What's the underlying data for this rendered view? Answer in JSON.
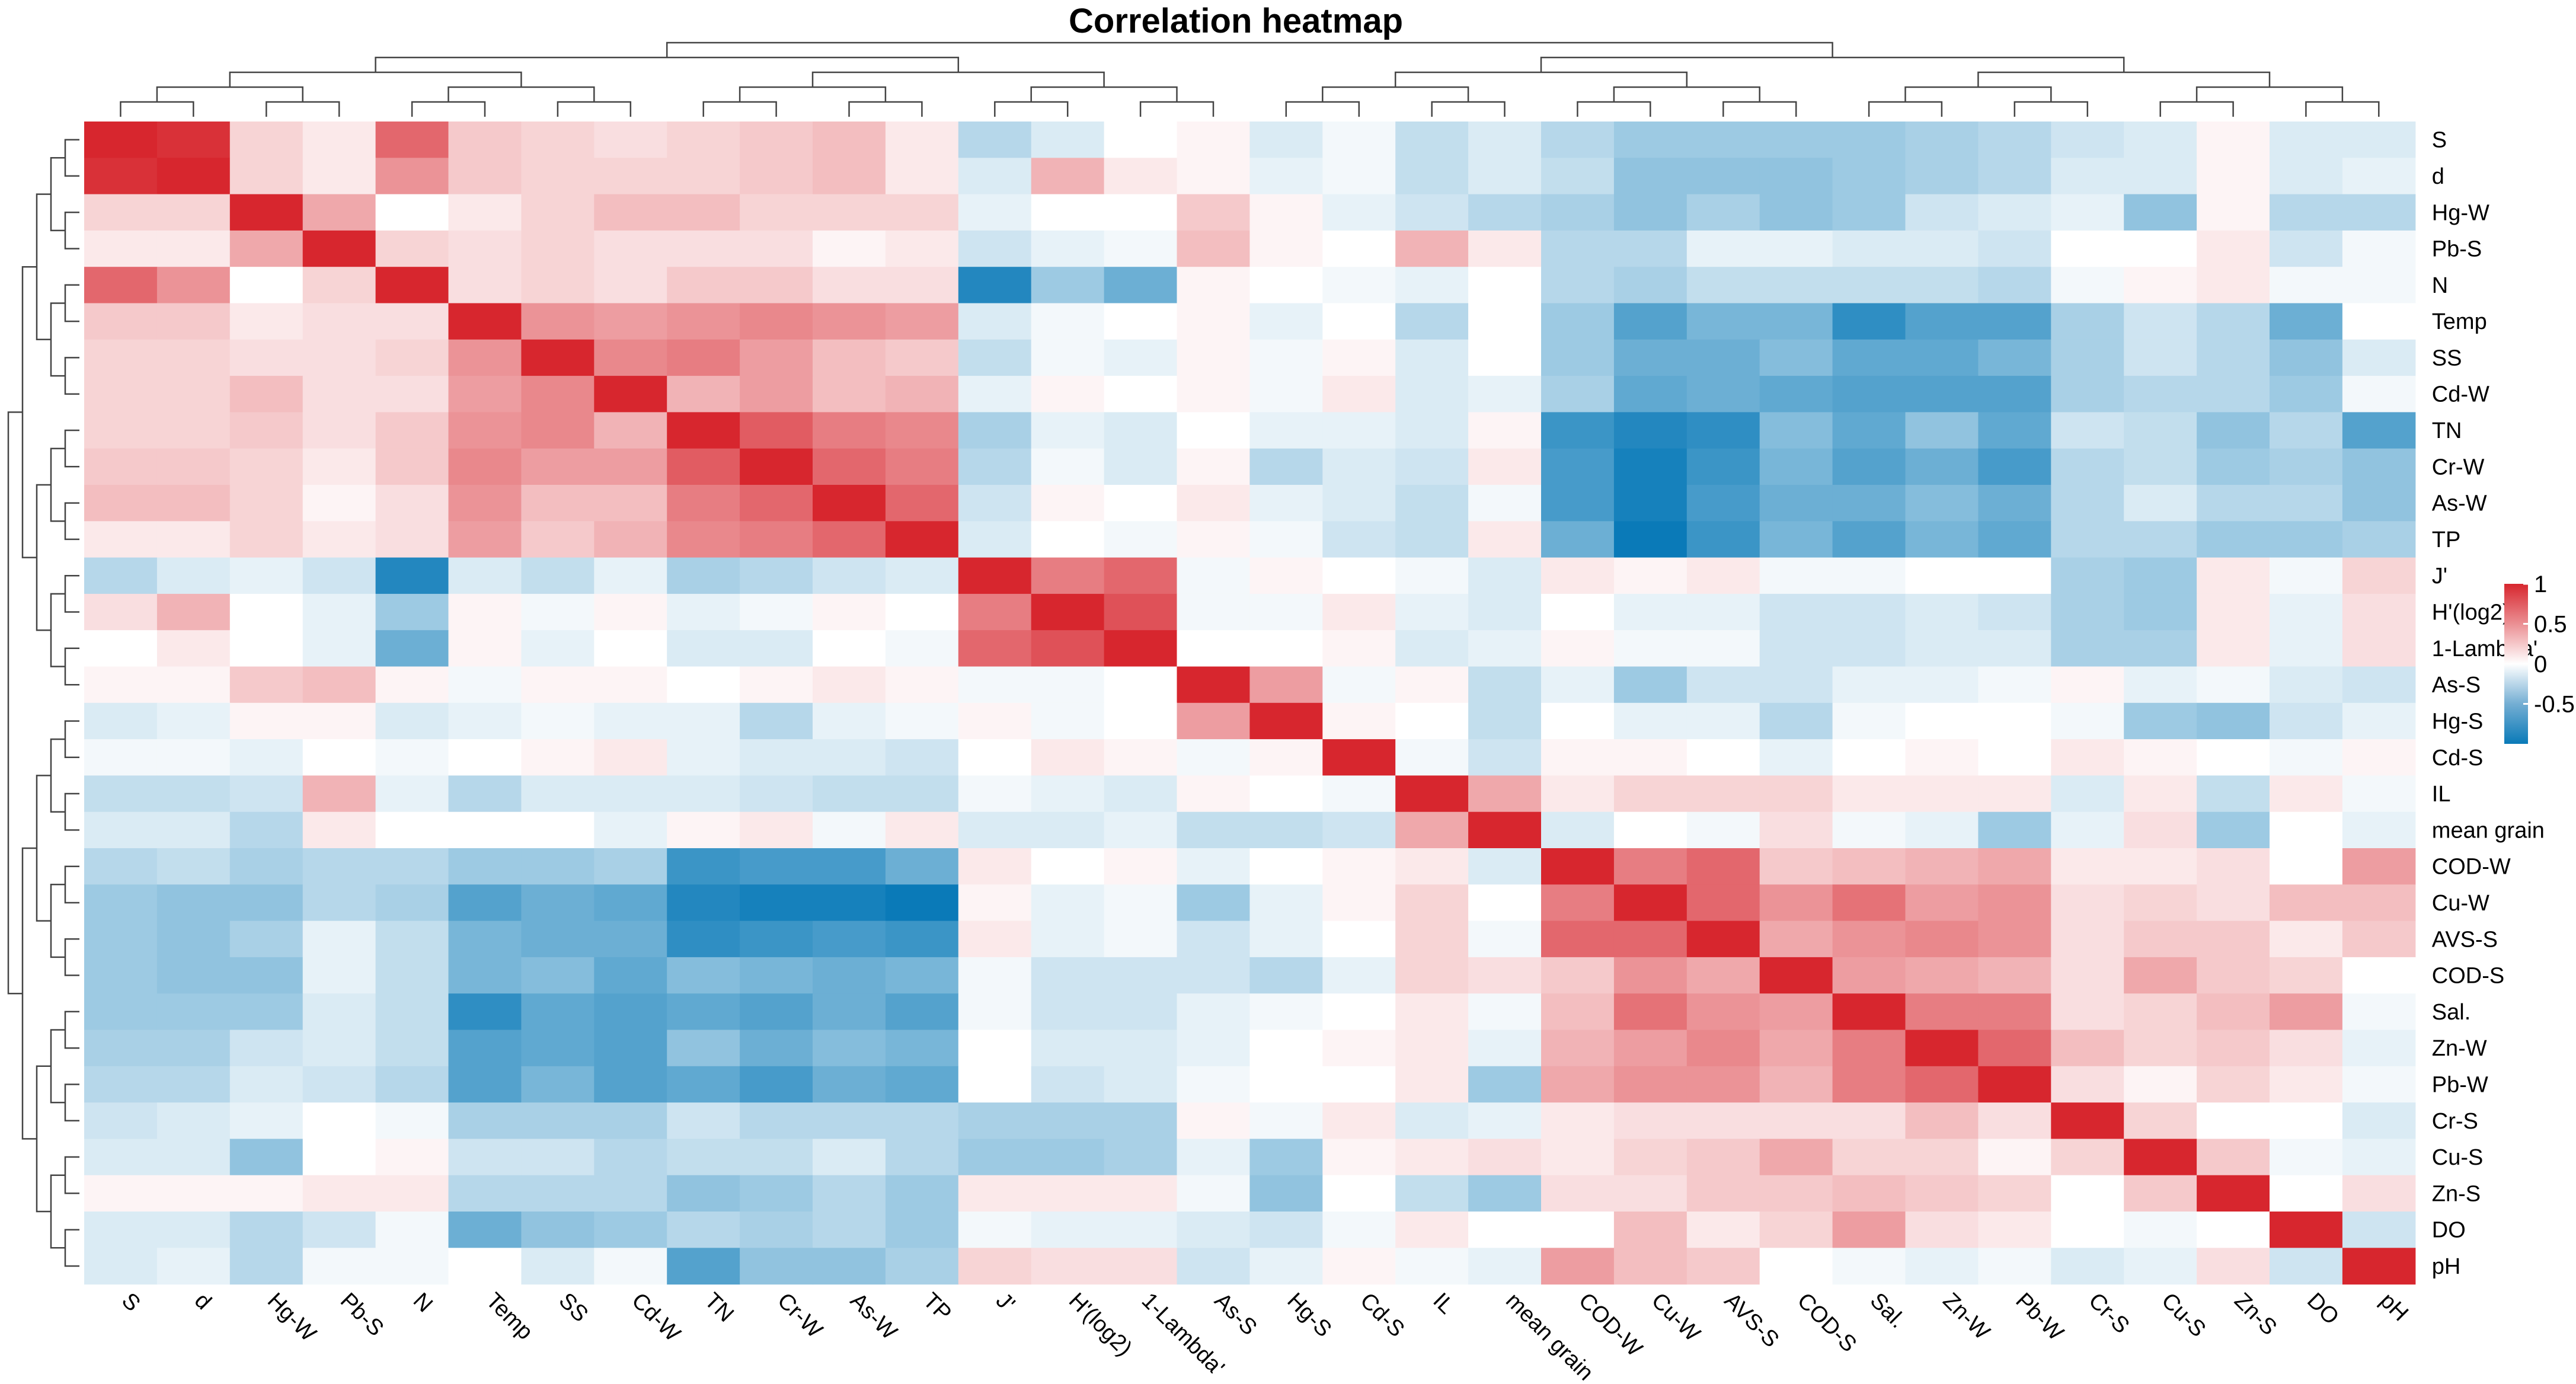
{
  "chart_data": {
    "type": "heatmap",
    "title": "Correlation heatmap",
    "variables": [
      "S",
      "d",
      "Hg-W",
      "Pb-S",
      "N",
      "Temp",
      "SS",
      "Cd-W",
      "TN",
      "Cr-W",
      "As-W",
      "TP",
      "J'",
      "H'(log2)",
      "1-Lambda'",
      "As-S",
      "Hg-S",
      "Cd-S",
      "IL",
      "mean grain",
      "COD-W",
      "Cu-W",
      "AVS-S",
      "COD-S",
      "Sal.",
      "Zn-W",
      "Pb-W",
      "Cr-S",
      "Cu-S",
      "Zn-S",
      "DO",
      "pH"
    ],
    "row_labels": [
      "S",
      "d",
      "Hg-W",
      "Pb-S",
      "N",
      "Temp",
      "SS",
      "Cd-W",
      "TN",
      "Cr-W",
      "As-W",
      "TP",
      "J'",
      "H'(log2)",
      "1-Lambda'",
      "As-S",
      "Hg-S",
      "Cd-S",
      "IL",
      "mean grain",
      "COD-W",
      "Cu-W",
      "AVS-S",
      "COD-S",
      "Sal.",
      "Zn-W",
      "Pb-W",
      "Cr-S",
      "Cu-S",
      "Zn-S",
      "DO",
      "pH"
    ],
    "col_labels": [
      "S",
      "d",
      "Hg-W",
      "Pb-S",
      "N",
      "Temp",
      "SS",
      "Cd-W",
      "TN",
      "Cr-W",
      "As-W",
      "TP",
      "J'",
      "H'(log2)",
      "1-Lambda'",
      "As-S",
      "Hg-S",
      "Cd-S",
      "IL",
      "mean grain",
      "COD-W",
      "Cu-W",
      "AVS-S",
      "COD-S",
      "Sal.",
      "Zn-W",
      "Pb-W",
      "Cr-S",
      "Cu-S",
      "Zn-S",
      "DO",
      "pH"
    ],
    "values": [
      [
        1.0,
        0.95,
        0.2,
        0.1,
        0.7,
        0.25,
        0.2,
        0.15,
        0.2,
        0.25,
        0.3,
        0.1,
        -0.3,
        -0.15,
        0.0,
        0.05,
        -0.15,
        -0.05,
        -0.25,
        -0.15,
        -0.3,
        -0.4,
        -0.4,
        -0.4,
        -0.4,
        -0.35,
        -0.3,
        -0.2,
        -0.15,
        0.05,
        -0.15,
        -0.15
      ],
      [
        0.95,
        1.0,
        0.2,
        0.1,
        0.5,
        0.25,
        0.2,
        0.2,
        0.2,
        0.25,
        0.3,
        0.1,
        -0.15,
        0.35,
        0.1,
        0.05,
        -0.1,
        -0.05,
        -0.25,
        -0.15,
        -0.25,
        -0.45,
        -0.45,
        -0.45,
        -0.4,
        -0.35,
        -0.3,
        -0.15,
        -0.15,
        0.05,
        -0.15,
        -0.1
      ],
      [
        0.2,
        0.2,
        1.0,
        0.4,
        0.0,
        0.1,
        0.2,
        0.3,
        0.3,
        0.2,
        0.2,
        0.2,
        -0.1,
        0.0,
        0.0,
        0.25,
        0.05,
        -0.1,
        -0.2,
        -0.3,
        -0.35,
        -0.45,
        -0.35,
        -0.45,
        -0.4,
        -0.2,
        -0.15,
        -0.1,
        -0.45,
        0.05,
        -0.3,
        -0.3
      ],
      [
        0.1,
        0.1,
        0.4,
        1.0,
        0.2,
        0.15,
        0.2,
        0.15,
        0.15,
        0.15,
        0.05,
        0.1,
        -0.2,
        -0.1,
        -0.05,
        0.3,
        0.05,
        0.0,
        0.35,
        0.1,
        -0.3,
        -0.3,
        -0.1,
        -0.1,
        -0.15,
        -0.15,
        -0.2,
        0.0,
        0.0,
        0.1,
        -0.2,
        -0.05
      ],
      [
        0.7,
        0.5,
        0.0,
        0.2,
        1.0,
        0.15,
        0.2,
        0.15,
        0.25,
        0.25,
        0.15,
        0.15,
        -0.9,
        -0.4,
        -0.6,
        0.05,
        0.0,
        -0.05,
        -0.1,
        0.0,
        -0.3,
        -0.35,
        -0.25,
        -0.25,
        -0.25,
        -0.25,
        -0.3,
        -0.05,
        0.05,
        0.1,
        -0.05,
        -0.05
      ],
      [
        0.25,
        0.25,
        0.1,
        0.15,
        0.15,
        1.0,
        0.5,
        0.45,
        0.5,
        0.55,
        0.5,
        0.45,
        -0.15,
        -0.05,
        0.0,
        0.05,
        -0.1,
        0.0,
        -0.3,
        0.0,
        -0.4,
        -0.7,
        -0.55,
        -0.55,
        -0.85,
        -0.7,
        -0.7,
        -0.35,
        -0.2,
        -0.3,
        -0.6,
        0.0
      ],
      [
        0.2,
        0.2,
        0.15,
        0.15,
        0.2,
        0.5,
        1.0,
        0.55,
        0.6,
        0.45,
        0.3,
        0.25,
        -0.25,
        -0.05,
        -0.1,
        0.05,
        -0.05,
        0.05,
        -0.15,
        0.0,
        -0.4,
        -0.6,
        -0.6,
        -0.5,
        -0.65,
        -0.65,
        -0.55,
        -0.35,
        -0.2,
        -0.3,
        -0.45,
        -0.15
      ],
      [
        0.2,
        0.2,
        0.3,
        0.15,
        0.15,
        0.45,
        0.55,
        1.0,
        0.35,
        0.45,
        0.3,
        0.35,
        -0.1,
        0.05,
        0.0,
        0.05,
        -0.05,
        0.1,
        -0.15,
        -0.1,
        -0.35,
        -0.65,
        -0.6,
        -0.65,
        -0.7,
        -0.7,
        -0.7,
        -0.35,
        -0.3,
        -0.3,
        -0.4,
        -0.05
      ],
      [
        0.2,
        0.2,
        0.25,
        0.15,
        0.25,
        0.5,
        0.55,
        0.35,
        1.0,
        0.75,
        0.6,
        0.55,
        -0.35,
        -0.1,
        -0.15,
        0.0,
        -0.1,
        -0.1,
        -0.15,
        0.05,
        -0.8,
        -0.9,
        -0.85,
        -0.5,
        -0.65,
        -0.45,
        -0.65,
        -0.2,
        -0.25,
        -0.45,
        -0.3,
        -0.7
      ],
      [
        0.25,
        0.25,
        0.2,
        0.1,
        0.25,
        0.55,
        0.45,
        0.45,
        0.75,
        1.0,
        0.7,
        0.6,
        -0.3,
        -0.05,
        -0.15,
        0.05,
        -0.3,
        -0.15,
        -0.2,
        0.1,
        -0.75,
        -0.95,
        -0.8,
        -0.55,
        -0.7,
        -0.6,
        -0.75,
        -0.3,
        -0.25,
        -0.4,
        -0.35,
        -0.45
      ],
      [
        0.3,
        0.3,
        0.2,
        0.05,
        0.15,
        0.5,
        0.3,
        0.3,
        0.6,
        0.7,
        1.0,
        0.7,
        -0.2,
        0.05,
        0.0,
        0.1,
        -0.1,
        -0.15,
        -0.25,
        -0.05,
        -0.75,
        -0.95,
        -0.75,
        -0.6,
        -0.6,
        -0.5,
        -0.6,
        -0.3,
        -0.15,
        -0.3,
        -0.3,
        -0.45
      ],
      [
        0.1,
        0.1,
        0.2,
        0.1,
        0.15,
        0.45,
        0.25,
        0.35,
        0.55,
        0.6,
        0.7,
        1.0,
        -0.15,
        0.0,
        -0.05,
        0.05,
        -0.05,
        -0.2,
        -0.25,
        0.1,
        -0.6,
        -1.0,
        -0.8,
        -0.55,
        -0.7,
        -0.55,
        -0.65,
        -0.3,
        -0.3,
        -0.4,
        -0.4,
        -0.35
      ],
      [
        -0.3,
        -0.15,
        -0.1,
        -0.2,
        -0.9,
        -0.15,
        -0.25,
        -0.1,
        -0.35,
        -0.3,
        -0.2,
        -0.15,
        1.0,
        0.6,
        0.7,
        -0.05,
        0.05,
        0.0,
        -0.05,
        -0.15,
        0.1,
        0.05,
        0.1,
        -0.05,
        -0.05,
        0.0,
        0.0,
        -0.35,
        -0.4,
        0.1,
        -0.05,
        0.2
      ],
      [
        0.15,
        0.35,
        0.0,
        -0.1,
        -0.4,
        0.05,
        -0.05,
        0.05,
        -0.1,
        -0.05,
        0.05,
        0.0,
        0.6,
        1.0,
        0.8,
        -0.05,
        -0.05,
        0.1,
        -0.1,
        -0.15,
        0.0,
        -0.1,
        -0.1,
        -0.2,
        -0.2,
        -0.15,
        -0.2,
        -0.35,
        -0.4,
        0.1,
        -0.1,
        0.15
      ],
      [
        0.0,
        0.1,
        0.0,
        -0.1,
        -0.6,
        0.05,
        -0.1,
        0.0,
        -0.15,
        -0.15,
        0.0,
        -0.05,
        0.7,
        0.8,
        1.0,
        0.0,
        0.0,
        0.05,
        -0.15,
        -0.1,
        0.05,
        -0.05,
        -0.05,
        -0.2,
        -0.2,
        -0.15,
        -0.15,
        -0.35,
        -0.35,
        0.1,
        -0.1,
        0.15
      ],
      [
        0.05,
        0.05,
        0.25,
        0.3,
        0.05,
        -0.05,
        0.05,
        0.05,
        0.0,
        0.05,
        0.1,
        0.05,
        -0.05,
        -0.05,
        0.0,
        1.0,
        0.45,
        -0.05,
        0.05,
        -0.25,
        -0.1,
        -0.4,
        -0.2,
        -0.2,
        -0.1,
        -0.1,
        -0.05,
        0.05,
        -0.1,
        -0.05,
        -0.15,
        -0.2
      ],
      [
        -0.15,
        -0.1,
        0.05,
        0.05,
        -0.15,
        -0.1,
        -0.05,
        -0.1,
        -0.1,
        -0.3,
        -0.1,
        -0.05,
        0.05,
        -0.05,
        0.0,
        0.45,
        1.0,
        0.05,
        0.0,
        -0.25,
        0.0,
        -0.1,
        -0.1,
        -0.3,
        -0.05,
        0.0,
        0.0,
        -0.05,
        -0.4,
        -0.45,
        -0.2,
        -0.1
      ],
      [
        -0.05,
        -0.05,
        -0.1,
        0.0,
        -0.05,
        0.0,
        0.05,
        0.1,
        -0.1,
        -0.15,
        -0.15,
        -0.2,
        0.0,
        0.1,
        0.05,
        -0.05,
        0.05,
        1.0,
        -0.05,
        -0.2,
        0.05,
        0.05,
        0.0,
        -0.1,
        0.0,
        0.05,
        0.0,
        0.1,
        0.05,
        0.0,
        -0.05,
        0.05
      ],
      [
        -0.25,
        -0.25,
        -0.2,
        0.35,
        -0.1,
        -0.3,
        -0.15,
        -0.15,
        -0.15,
        -0.2,
        -0.25,
        -0.25,
        -0.05,
        -0.1,
        -0.15,
        0.05,
        0.0,
        -0.05,
        1.0,
        0.4,
        0.1,
        0.2,
        0.2,
        0.2,
        0.1,
        0.1,
        0.1,
        -0.15,
        0.1,
        -0.25,
        0.1,
        -0.05
      ],
      [
        -0.15,
        -0.15,
        -0.3,
        0.1,
        0.0,
        0.0,
        0.0,
        -0.1,
        0.05,
        0.1,
        -0.05,
        0.1,
        -0.15,
        -0.15,
        -0.1,
        -0.25,
        -0.25,
        -0.2,
        0.4,
        1.0,
        -0.15,
        0.0,
        -0.05,
        0.15,
        -0.05,
        -0.1,
        -0.4,
        -0.1,
        0.15,
        -0.4,
        0.0,
        -0.1
      ],
      [
        -0.3,
        -0.25,
        -0.35,
        -0.3,
        -0.3,
        -0.4,
        -0.4,
        -0.35,
        -0.8,
        -0.75,
        -0.75,
        -0.6,
        0.1,
        0.0,
        0.05,
        -0.1,
        0.0,
        0.05,
        0.1,
        -0.15,
        1.0,
        0.6,
        0.7,
        0.25,
        0.3,
        0.35,
        0.4,
        0.1,
        0.1,
        0.15,
        0.0,
        0.45
      ],
      [
        -0.4,
        -0.45,
        -0.45,
        -0.3,
        -0.35,
        -0.7,
        -0.6,
        -0.65,
        -0.9,
        -0.95,
        -0.95,
        -1.0,
        0.05,
        -0.1,
        -0.05,
        -0.4,
        -0.1,
        0.05,
        0.2,
        0.0,
        0.6,
        1.0,
        0.7,
        0.5,
        0.65,
        0.45,
        0.5,
        0.15,
        0.2,
        0.15,
        0.3,
        0.3
      ],
      [
        -0.4,
        -0.45,
        -0.35,
        -0.1,
        -0.25,
        -0.55,
        -0.6,
        -0.6,
        -0.85,
        -0.8,
        -0.75,
        -0.8,
        0.1,
        -0.1,
        -0.05,
        -0.2,
        -0.1,
        0.0,
        0.2,
        -0.05,
        0.7,
        0.7,
        1.0,
        0.4,
        0.5,
        0.55,
        0.5,
        0.15,
        0.25,
        0.25,
        0.1,
        0.25
      ],
      [
        -0.4,
        -0.45,
        -0.45,
        -0.1,
        -0.25,
        -0.55,
        -0.5,
        -0.65,
        -0.5,
        -0.55,
        -0.6,
        -0.55,
        -0.05,
        -0.2,
        -0.2,
        -0.2,
        -0.3,
        -0.1,
        0.2,
        0.15,
        0.25,
        0.5,
        0.4,
        1.0,
        0.45,
        0.4,
        0.35,
        0.15,
        0.4,
        0.25,
        0.2,
        0.0
      ],
      [
        -0.4,
        -0.4,
        -0.4,
        -0.15,
        -0.25,
        -0.85,
        -0.65,
        -0.7,
        -0.65,
        -0.7,
        -0.6,
        -0.7,
        -0.05,
        -0.2,
        -0.2,
        -0.1,
        -0.05,
        0.0,
        0.1,
        -0.05,
        0.3,
        0.65,
        0.5,
        0.45,
        1.0,
        0.6,
        0.6,
        0.15,
        0.2,
        0.3,
        0.45,
        -0.05
      ],
      [
        -0.35,
        -0.35,
        -0.2,
        -0.15,
        -0.25,
        -0.7,
        -0.65,
        -0.7,
        -0.45,
        -0.6,
        -0.5,
        -0.55,
        0.0,
        -0.15,
        -0.15,
        -0.1,
        0.0,
        0.05,
        0.1,
        -0.1,
        0.35,
        0.45,
        0.55,
        0.4,
        0.6,
        1.0,
        0.7,
        0.3,
        0.2,
        0.25,
        0.15,
        -0.1
      ],
      [
        -0.3,
        -0.3,
        -0.15,
        -0.2,
        -0.3,
        -0.7,
        -0.55,
        -0.7,
        -0.65,
        -0.75,
        -0.6,
        -0.65,
        0.0,
        -0.2,
        -0.15,
        -0.05,
        0.0,
        0.0,
        0.1,
        -0.4,
        0.4,
        0.5,
        0.5,
        0.35,
        0.6,
        0.7,
        1.0,
        0.15,
        0.05,
        0.2,
        0.1,
        -0.05
      ],
      [
        -0.2,
        -0.15,
        -0.1,
        0.0,
        -0.05,
        -0.35,
        -0.35,
        -0.35,
        -0.2,
        -0.3,
        -0.3,
        -0.3,
        -0.35,
        -0.35,
        -0.35,
        0.05,
        -0.05,
        0.1,
        -0.15,
        -0.1,
        0.1,
        0.15,
        0.15,
        0.15,
        0.15,
        0.3,
        0.15,
        1.0,
        0.2,
        0.0,
        0.0,
        -0.15
      ],
      [
        -0.15,
        -0.15,
        -0.45,
        0.0,
        0.05,
        -0.2,
        -0.2,
        -0.3,
        -0.25,
        -0.25,
        -0.15,
        -0.3,
        -0.4,
        -0.4,
        -0.35,
        -0.1,
        -0.4,
        0.05,
        0.1,
        0.15,
        0.1,
        0.2,
        0.25,
        0.4,
        0.2,
        0.2,
        0.05,
        0.2,
        1.0,
        0.25,
        -0.05,
        -0.1
      ],
      [
        0.05,
        0.05,
        0.05,
        0.1,
        0.1,
        -0.3,
        -0.3,
        -0.3,
        -0.45,
        -0.4,
        -0.3,
        -0.4,
        0.1,
        0.1,
        0.1,
        -0.05,
        -0.45,
        0.0,
        -0.25,
        -0.4,
        0.15,
        0.15,
        0.25,
        0.25,
        0.3,
        0.25,
        0.2,
        0.0,
        0.25,
        1.0,
        0.0,
        0.15
      ],
      [
        -0.15,
        -0.15,
        -0.3,
        -0.2,
        -0.05,
        -0.6,
        -0.45,
        -0.4,
        -0.3,
        -0.35,
        -0.3,
        -0.4,
        -0.05,
        -0.1,
        -0.1,
        -0.15,
        -0.2,
        -0.05,
        0.1,
        0.0,
        0.0,
        0.3,
        0.1,
        0.2,
        0.45,
        0.15,
        0.1,
        0.0,
        -0.05,
        0.0,
        1.0,
        -0.2
      ],
      [
        -0.15,
        -0.1,
        -0.3,
        -0.05,
        -0.05,
        0.0,
        -0.15,
        -0.05,
        -0.7,
        -0.45,
        -0.45,
        -0.35,
        0.2,
        0.15,
        0.15,
        -0.2,
        -0.1,
        0.05,
        -0.05,
        -0.1,
        0.45,
        0.3,
        0.25,
        0.0,
        -0.05,
        -0.1,
        -0.05,
        -0.15,
        -0.1,
        0.15,
        -0.2,
        1.0
      ]
    ],
    "vmin": -1.0,
    "vmax": 1.0,
    "colorbar_ticks": [
      "1",
      "0.5",
      "0",
      "-0.5"
    ],
    "colorbar_tick_values": [
      1,
      0.5,
      0,
      -0.5
    ],
    "colors": {
      "negative": "#0a7ab8",
      "neutral": "#ffffff",
      "positive": "#d7262e"
    },
    "dendrogram": true,
    "legend_position": "right"
  }
}
